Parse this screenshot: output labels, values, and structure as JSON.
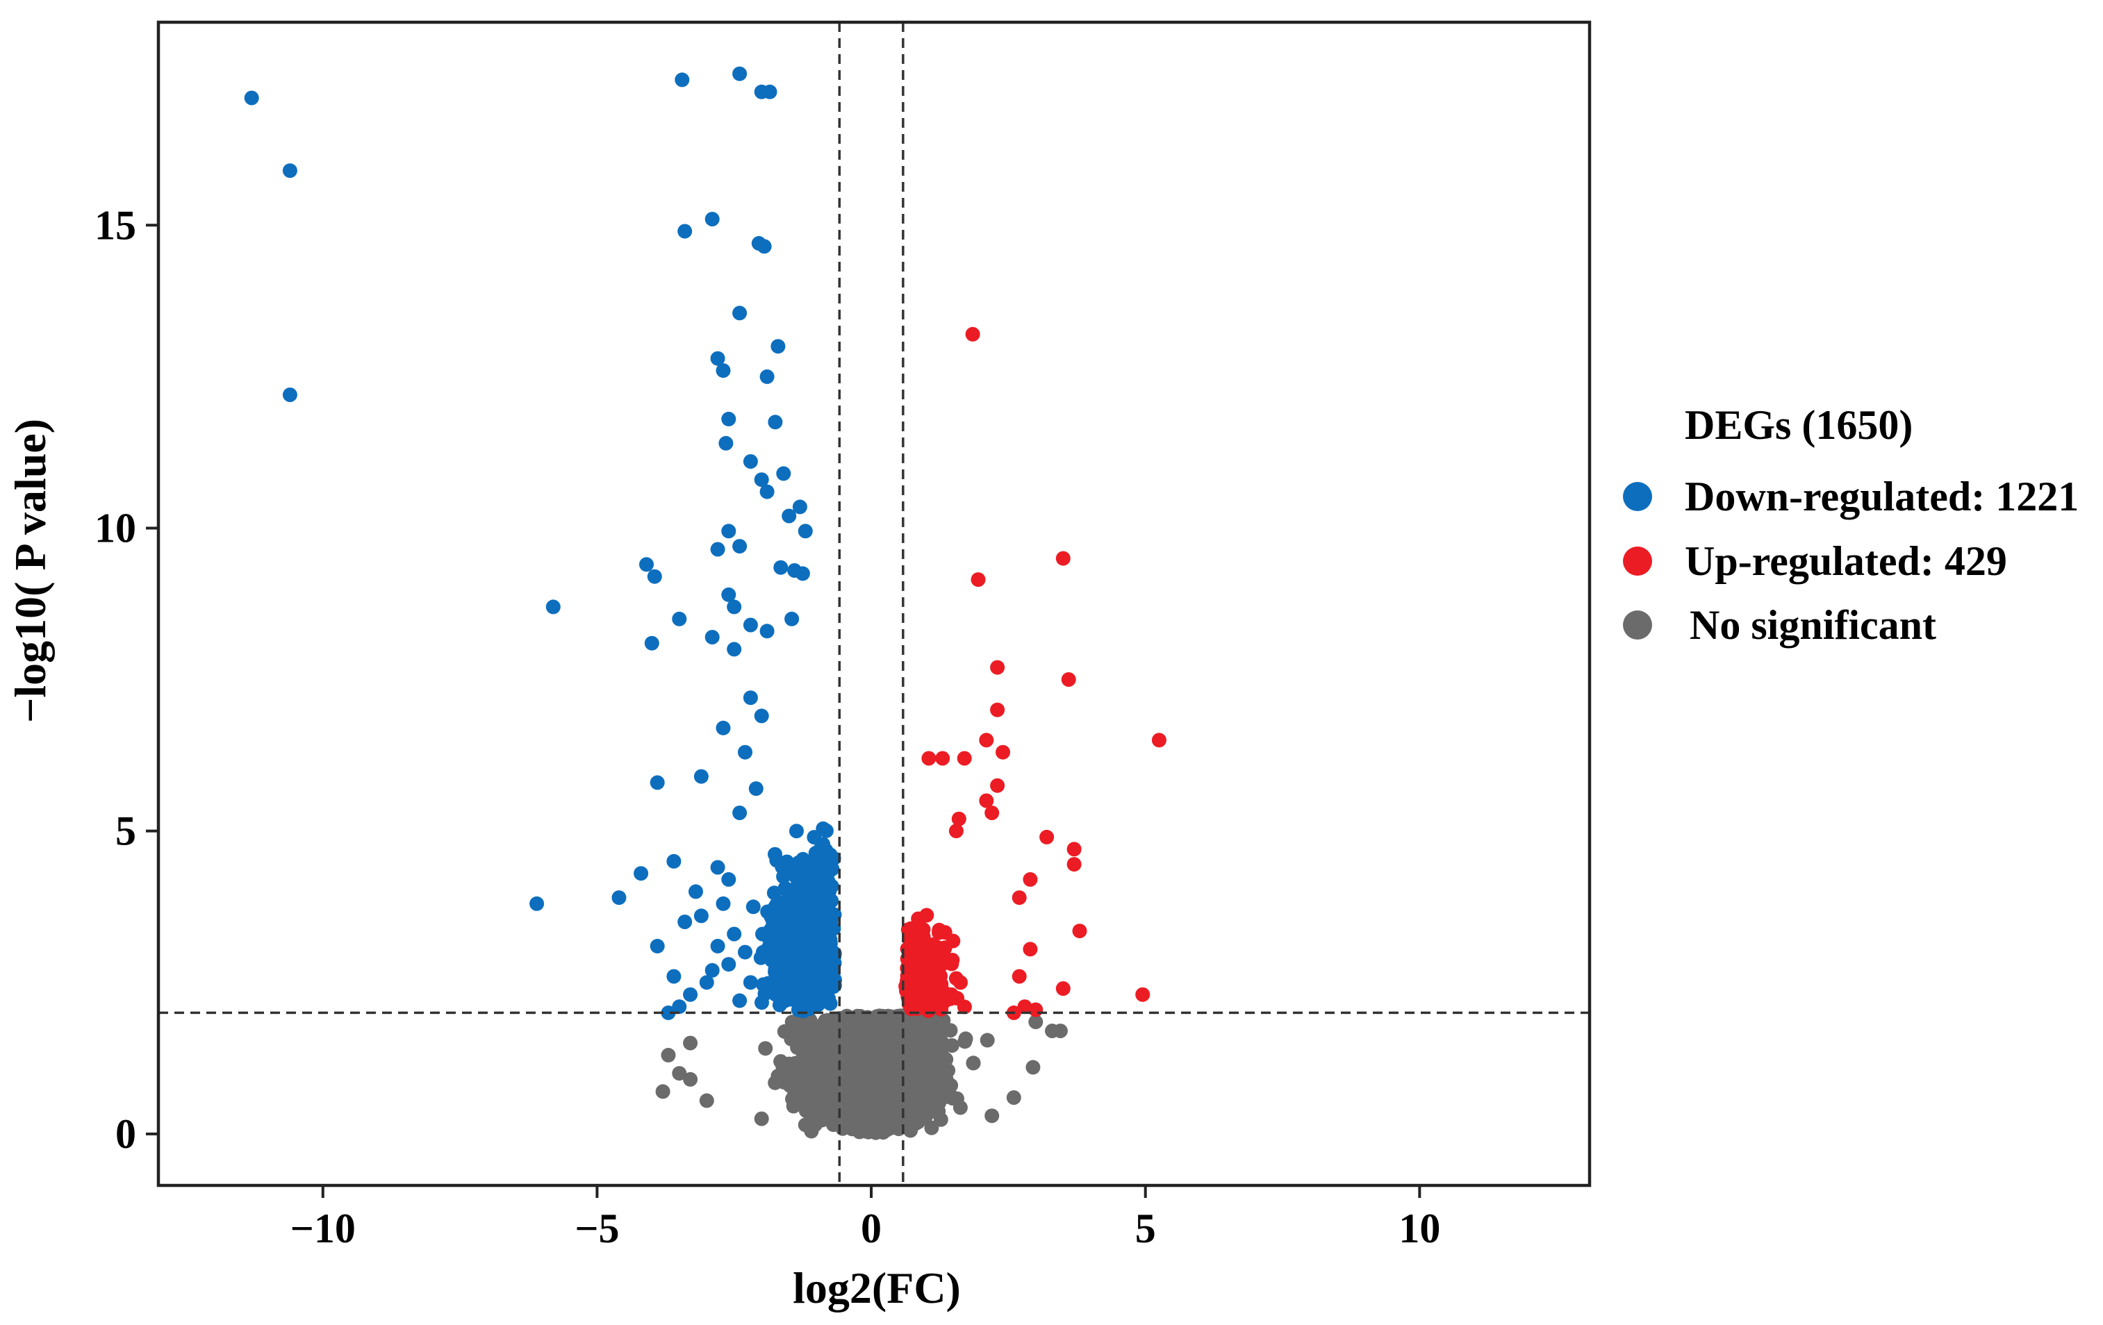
{
  "chart_data": {
    "type": "scatter",
    "title": "",
    "xlabel": "log2(FC)",
    "ylabel": "−log10( P value)",
    "xlim": [
      -13,
      13.1
    ],
    "ylim": [
      -0.85,
      18.35
    ],
    "xticks": [
      -10,
      -5,
      0,
      5,
      10
    ],
    "xtick_labels": [
      "−10",
      "−5",
      "0",
      "5",
      "10"
    ],
    "yticks": [
      0,
      5,
      10,
      15
    ],
    "ytick_labels": [
      "0",
      "5",
      "10",
      "15"
    ],
    "thresholds": {
      "log2fc": [
        -0.58,
        0.58
      ],
      "neg_log10_p": 2
    },
    "colors": {
      "down": "#0d6ebe",
      "up": "#ec1c24",
      "ns": "#6b6b6b",
      "frame": "#222222"
    },
    "legend": {
      "title": "DEGs (1650)",
      "position": "right",
      "entries": [
        {
          "key": "down",
          "label": "Down-regulated: 1221",
          "color": "#0d6ebe"
        },
        {
          "key": "up",
          "label": "Up-regulated: 429",
          "color": "#ec1c24"
        },
        {
          "key": "ns",
          "label": "No significant",
          "color": "#6b6b6b"
        }
      ]
    },
    "series": [
      {
        "name": "Down-regulated",
        "key": "down",
        "count": 1221,
        "points": [
          [
            -11.3,
            17.1
          ],
          [
            -10.6,
            15.9
          ],
          [
            -10.6,
            12.2
          ],
          [
            -5.8,
            8.7
          ],
          [
            -6.1,
            3.8
          ],
          [
            -4.6,
            3.9
          ],
          [
            -4.2,
            4.3
          ],
          [
            -4.1,
            9.4
          ],
          [
            -3.95,
            9.2
          ],
          [
            -4.0,
            8.1
          ],
          [
            -3.9,
            5.8
          ],
          [
            -3.9,
            3.1
          ],
          [
            -3.45,
            17.4
          ],
          [
            -3.4,
            14.9
          ],
          [
            -3.5,
            8.5
          ],
          [
            -3.1,
            5.9
          ],
          [
            -2.4,
            17.5
          ],
          [
            -2.0,
            17.2
          ],
          [
            -1.85,
            17.2
          ],
          [
            -2.9,
            15.1
          ],
          [
            -2.05,
            14.7
          ],
          [
            -1.95,
            14.65
          ],
          [
            -2.4,
            13.55
          ],
          [
            -1.7,
            13.0
          ],
          [
            -2.8,
            12.8
          ],
          [
            -2.7,
            12.6
          ],
          [
            -1.9,
            12.5
          ],
          [
            -2.6,
            11.8
          ],
          [
            -2.65,
            11.4
          ],
          [
            -1.75,
            11.75
          ],
          [
            -2.2,
            11.1
          ],
          [
            -2.0,
            10.8
          ],
          [
            -1.6,
            10.9
          ],
          [
            -1.9,
            10.6
          ],
          [
            -1.5,
            10.2
          ],
          [
            -1.3,
            10.35
          ],
          [
            -1.2,
            9.95
          ],
          [
            -2.6,
            9.95
          ],
          [
            -2.4,
            9.7
          ],
          [
            -2.8,
            9.65
          ],
          [
            -1.65,
            9.35
          ],
          [
            -1.4,
            9.3
          ],
          [
            -1.25,
            9.25
          ],
          [
            -2.6,
            8.9
          ],
          [
            -2.5,
            8.7
          ],
          [
            -2.2,
            8.4
          ],
          [
            -1.9,
            8.3
          ],
          [
            -1.45,
            8.5
          ],
          [
            -2.9,
            8.2
          ],
          [
            -2.5,
            8.0
          ],
          [
            -3.6,
            4.5
          ],
          [
            -3.2,
            4.0
          ],
          [
            -3.1,
            3.6
          ],
          [
            -3.4,
            3.5
          ],
          [
            -3.6,
            2.6
          ],
          [
            -3.3,
            2.3
          ],
          [
            -3.0,
            2.5
          ],
          [
            -2.9,
            2.7
          ],
          [
            -3.7,
            2.0
          ],
          [
            -3.5,
            2.1
          ],
          [
            -2.8,
            4.4
          ],
          [
            -2.6,
            4.2
          ],
          [
            -2.7,
            3.8
          ],
          [
            -2.5,
            3.3
          ],
          [
            -2.4,
            5.3
          ],
          [
            -2.3,
            6.3
          ],
          [
            -2.2,
            7.2
          ],
          [
            -2.7,
            6.7
          ],
          [
            -2.1,
            5.7
          ],
          [
            -2.0,
            6.9
          ],
          [
            -2.8,
            3.1
          ],
          [
            -2.6,
            2.8
          ],
          [
            -2.4,
            2.2
          ],
          [
            -2.2,
            2.5
          ],
          [
            -2.3,
            3.0
          ]
        ]
      },
      {
        "name": "Up-regulated",
        "key": "up",
        "count": 429,
        "points": [
          [
            1.85,
            13.2
          ],
          [
            3.5,
            9.5
          ],
          [
            1.95,
            9.15
          ],
          [
            3.6,
            7.5
          ],
          [
            2.3,
            7.7
          ],
          [
            2.3,
            7.0
          ],
          [
            5.25,
            6.5
          ],
          [
            2.1,
            6.5
          ],
          [
            2.4,
            6.3
          ],
          [
            1.7,
            6.2
          ],
          [
            1.3,
            6.2
          ],
          [
            1.05,
            6.2
          ],
          [
            2.3,
            5.75
          ],
          [
            2.1,
            5.5
          ],
          [
            2.2,
            5.3
          ],
          [
            1.6,
            5.2
          ],
          [
            1.55,
            5.0
          ],
          [
            3.2,
            4.9
          ],
          [
            3.7,
            4.7
          ],
          [
            3.7,
            4.45
          ],
          [
            2.9,
            4.2
          ],
          [
            2.7,
            3.9
          ],
          [
            3.8,
            3.35
          ],
          [
            2.9,
            3.05
          ],
          [
            2.7,
            2.6
          ],
          [
            3.5,
            2.4
          ],
          [
            4.95,
            2.3
          ],
          [
            3.0,
            2.05
          ],
          [
            2.8,
            2.1
          ],
          [
            2.6,
            2.0
          ]
        ]
      },
      {
        "name": "No significant",
        "key": "ns",
        "count": null,
        "points": [
          [
            -3.8,
            0.7
          ],
          [
            -3.5,
            1.0
          ],
          [
            -3.7,
            1.3
          ],
          [
            -3.3,
            1.5
          ],
          [
            -3.3,
            0.9
          ],
          [
            -3.0,
            0.55
          ],
          [
            3.45,
            1.7
          ],
          [
            2.95,
            1.1
          ],
          [
            2.6,
            0.6
          ],
          [
            2.2,
            0.3
          ],
          [
            -2.0,
            0.25
          ],
          [
            -1.2,
            0.15
          ],
          [
            1.1,
            0.1
          ],
          [
            3.0,
            1.85
          ],
          [
            3.3,
            1.7
          ]
        ]
      }
    ]
  }
}
